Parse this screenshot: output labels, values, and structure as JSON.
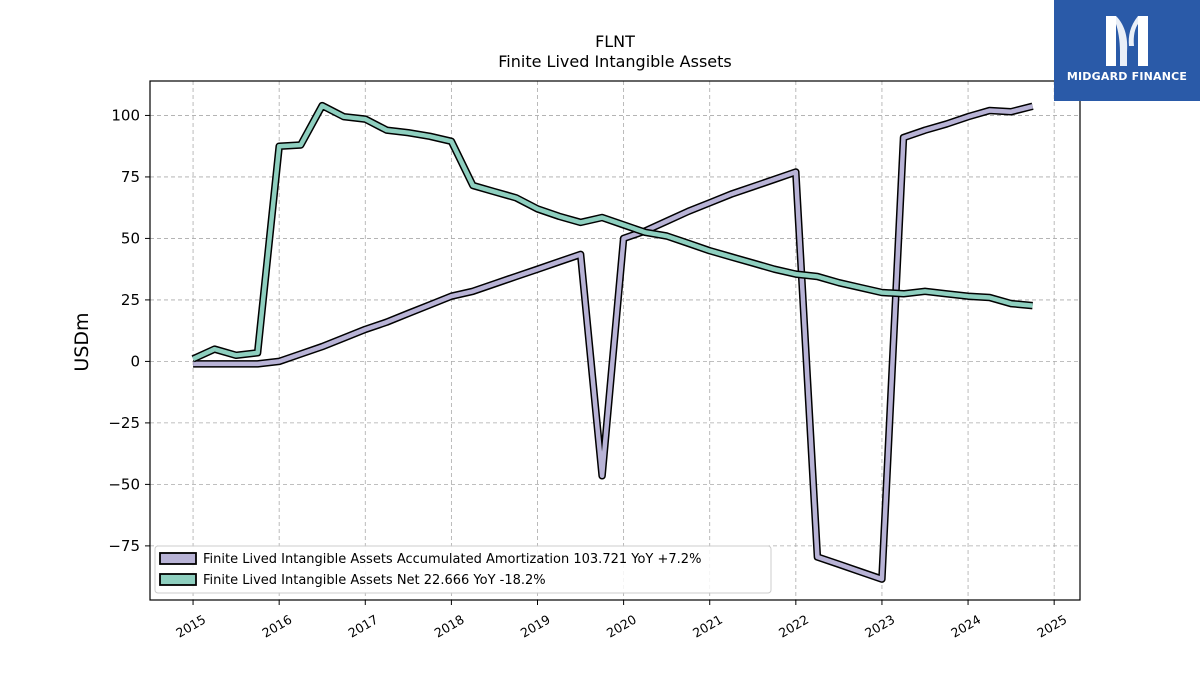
{
  "chart_data": {
    "type": "line",
    "title": "FLNT",
    "subtitle": "Finite Lived Intangible Assets",
    "ylabel": "USDm",
    "xlabel": "",
    "ylim": [
      -97,
      114
    ],
    "xlim": [
      2014.5,
      2025.3
    ],
    "y_ticks": [
      -75,
      -50,
      -25,
      0,
      25,
      50,
      75,
      100
    ],
    "x_ticks": [
      2015,
      2016,
      2017,
      2018,
      2019,
      2020,
      2021,
      2022,
      2023,
      2024,
      2025
    ],
    "y_tick_labels": [
      "−75",
      "−50",
      "−25",
      "0",
      "25",
      "50",
      "75",
      "100"
    ],
    "x_tick_labels": [
      "2015",
      "2016",
      "2017",
      "2018",
      "2019",
      "2020",
      "2021",
      "2022",
      "2023",
      "2024",
      "2025"
    ],
    "grid": true,
    "legend_position": "lower-left",
    "series": [
      {
        "name": "Finite Lived Intangible Assets Accumulated Amortization  103.721 YoY +7.2%",
        "color": "#b8b3d6",
        "points": [
          [
            2015.0,
            -1
          ],
          [
            2015.25,
            -1
          ],
          [
            2015.5,
            -1
          ],
          [
            2015.75,
            -1
          ],
          [
            2016.0,
            0
          ],
          [
            2016.25,
            3
          ],
          [
            2016.5,
            6
          ],
          [
            2016.75,
            9.5
          ],
          [
            2017.0,
            13
          ],
          [
            2017.25,
            16
          ],
          [
            2017.5,
            19.5
          ],
          [
            2017.75,
            23
          ],
          [
            2018.0,
            26.5
          ],
          [
            2018.25,
            28.5
          ],
          [
            2018.5,
            31.5
          ],
          [
            2018.75,
            34.5
          ],
          [
            2019.0,
            37.5
          ],
          [
            2019.25,
            40.5
          ],
          [
            2019.5,
            43.5
          ],
          [
            2019.75,
            -46.5
          ],
          [
            2020.0,
            50
          ],
          [
            2020.25,
            53
          ],
          [
            2020.5,
            57
          ],
          [
            2020.75,
            61
          ],
          [
            2021.0,
            64.5
          ],
          [
            2021.25,
            68
          ],
          [
            2021.5,
            71
          ],
          [
            2021.75,
            74
          ],
          [
            2022.0,
            77
          ],
          [
            2022.25,
            -79.5
          ],
          [
            2022.5,
            -82.5
          ],
          [
            2022.75,
            -85.5
          ],
          [
            2023.0,
            -88.5
          ],
          [
            2023.25,
            91
          ],
          [
            2023.5,
            94
          ],
          [
            2023.75,
            96.5
          ],
          [
            2024.0,
            99.5
          ],
          [
            2024.25,
            102
          ],
          [
            2024.5,
            101.5
          ],
          [
            2024.75,
            103.7
          ]
        ]
      },
      {
        "name": "Finite Lived Intangible Assets Net  22.666 YoY -18.2%",
        "color": "#8ecfbf",
        "points": [
          [
            2015.0,
            1
          ],
          [
            2015.25,
            5
          ],
          [
            2015.5,
            2.5
          ],
          [
            2015.75,
            3.5
          ],
          [
            2016.0,
            87.5
          ],
          [
            2016.25,
            88
          ],
          [
            2016.5,
            104
          ],
          [
            2016.75,
            99.5
          ],
          [
            2017.0,
            98.5
          ],
          [
            2017.25,
            94
          ],
          [
            2017.5,
            93
          ],
          [
            2017.75,
            91.5
          ],
          [
            2018.0,
            89.5
          ],
          [
            2018.25,
            71.5
          ],
          [
            2018.5,
            69
          ],
          [
            2018.75,
            66.5
          ],
          [
            2019.0,
            62
          ],
          [
            2019.25,
            59
          ],
          [
            2019.5,
            56.5
          ],
          [
            2019.75,
            58.5
          ],
          [
            2020.0,
            55.5
          ],
          [
            2020.25,
            52.5
          ],
          [
            2020.5,
            51
          ],
          [
            2020.75,
            48
          ],
          [
            2021.0,
            45
          ],
          [
            2021.25,
            42.5
          ],
          [
            2021.5,
            40
          ],
          [
            2021.75,
            37.5
          ],
          [
            2022.0,
            35.5
          ],
          [
            2022.25,
            34.5
          ],
          [
            2022.5,
            32
          ],
          [
            2022.75,
            30
          ],
          [
            2023.0,
            28
          ],
          [
            2023.25,
            27.5
          ],
          [
            2023.5,
            28.5
          ],
          [
            2023.75,
            27.5
          ],
          [
            2024.0,
            26.5
          ],
          [
            2024.25,
            26
          ],
          [
            2024.5,
            23.5
          ],
          [
            2024.75,
            22.7
          ]
        ]
      }
    ]
  },
  "logo": {
    "text": "MIDGARD FINANCE",
    "background": "#2a5aa8"
  }
}
